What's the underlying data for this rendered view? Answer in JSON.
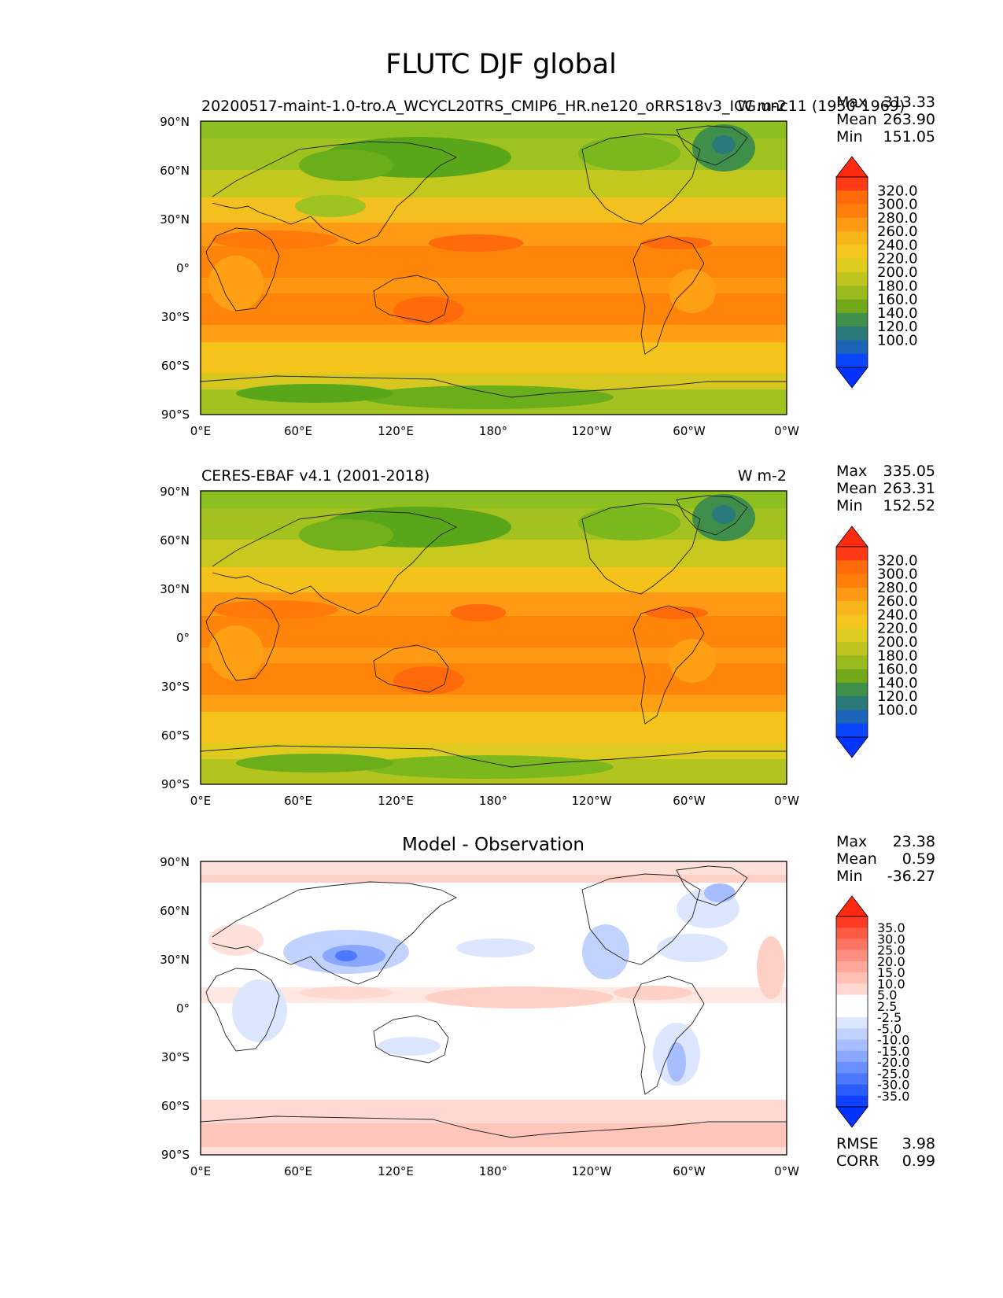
{
  "figure": {
    "title": "FLUTC DJF global"
  },
  "panels": [
    {
      "id": "test",
      "title_left": "20200517-maint-1.0-tro.A_WCYCL20TRS_CMIP6_HR.ne120_oRRS18v3_ICG.unc11 (1950-1969)",
      "title_center": "",
      "title_right": "W m-2",
      "stats": [
        {
          "label": "Max",
          "value": "313.33"
        },
        {
          "label": "Mean",
          "value": "263.90"
        },
        {
          "label": "Min",
          "value": "151.05"
        }
      ],
      "colorbar_key": "absolute"
    },
    {
      "id": "reference",
      "title_left": "CERES-EBAF v4.1 (2001-2018)",
      "title_center": "",
      "title_right": "W m-2",
      "stats": [
        {
          "label": "Max",
          "value": "335.05"
        },
        {
          "label": "Mean",
          "value": "263.31"
        },
        {
          "label": "Min",
          "value": "152.52"
        }
      ],
      "colorbar_key": "absolute"
    },
    {
      "id": "diff",
      "title_left": "",
      "title_center": "Model - Observation",
      "title_right": "",
      "stats": [
        {
          "label": "Max",
          "value": "23.38"
        },
        {
          "label": "Mean",
          "value": "0.59"
        },
        {
          "label": "Min",
          "value": "-36.27"
        }
      ],
      "extra_stats": [
        {
          "label": "RMSE",
          "value": "3.98"
        },
        {
          "label": "CORR",
          "value": "0.99"
        }
      ],
      "colorbar_key": "difference"
    }
  ],
  "axes": {
    "lat_ticks": [
      "90°N",
      "60°N",
      "30°N",
      "0°",
      "30°S",
      "60°S",
      "90°S"
    ],
    "lon_ticks": [
      "0°E",
      "60°E",
      "120°E",
      "180°",
      "120°W",
      "60°W",
      "0°W"
    ]
  },
  "colorbars": {
    "absolute": {
      "labels": [
        "320.0",
        "300.0",
        "280.0",
        "260.0",
        "240.0",
        "220.0",
        "200.0",
        "180.0",
        "160.0",
        "140.0",
        "120.0",
        "100.0"
      ],
      "colors_top_to_bottom": [
        "#ff3a14",
        "#ff6a0a",
        "#ff7f0a",
        "#ff9a14",
        "#f7b519",
        "#f5c51f",
        "#dfcc20",
        "#bfc41e",
        "#99bb1d",
        "#72a81a",
        "#3f8f4a",
        "#2a7a7a",
        "#1c64b8",
        "#0a45ff"
      ],
      "top_arrow": "#ff2a10",
      "bottom_arrow": "#0033ff"
    },
    "difference": {
      "labels": [
        "35.0",
        "30.0",
        "25.0",
        "20.0",
        "15.0",
        "10.0",
        "5.0",
        "2.5",
        "-2.5",
        "-5.0",
        "-10.0",
        "-15.0",
        "-20.0",
        "-25.0",
        "-30.0",
        "-35.0"
      ],
      "colors_top_to_bottom": [
        "#ff3a22",
        "#ff5a45",
        "#ff7563",
        "#ff8f80",
        "#ffa89b",
        "#ffc1b6",
        "#ffd9d1",
        "#ffffff",
        "#ffffff",
        "#dde6ff",
        "#c2d2ff",
        "#a6bdff",
        "#8aa8ff",
        "#6a90ff",
        "#4c78ff",
        "#2a5cff",
        "#1040ff"
      ],
      "top_arrow": "#ff2a10",
      "bottom_arrow": "#0033ff"
    }
  },
  "chart_data": [
    {
      "type": "heatmap",
      "title": "20200517-maint-1.0-tro.A_WCYCL20TRS_CMIP6_HR.ne120_oRRS18v3_ICG.unc11 (1950-1969)",
      "units": "W m-2",
      "x": [
        "0°E",
        "60°E",
        "120°E",
        "180°",
        "120°W",
        "60°W",
        "0°W"
      ],
      "y": [
        "90°N",
        "60°N",
        "30°N",
        "0°",
        "30°S",
        "60°S",
        "90°S"
      ],
      "zonal_band_values_N_to_S": [
        195,
        200,
        230,
        265,
        285,
        290,
        280,
        270,
        255,
        235,
        220,
        205
      ],
      "stats": {
        "max": 313.33,
        "mean": 263.9,
        "min": 151.05
      },
      "colorbar_levels": [
        100,
        120,
        140,
        160,
        180,
        200,
        220,
        240,
        260,
        280,
        300,
        320
      ]
    },
    {
      "type": "heatmap",
      "title": "CERES-EBAF v4.1 (2001-2018)",
      "units": "W m-2",
      "x": [
        "0°E",
        "60°E",
        "120°E",
        "180°",
        "120°W",
        "60°W",
        "0°W"
      ],
      "y": [
        "90°N",
        "60°N",
        "30°N",
        "0°",
        "30°S",
        "60°S",
        "90°S"
      ],
      "zonal_band_values_N_to_S": [
        195,
        200,
        230,
        265,
        285,
        290,
        280,
        270,
        255,
        235,
        220,
        205
      ],
      "stats": {
        "max": 335.05,
        "mean": 263.31,
        "min": 152.52
      },
      "colorbar_levels": [
        100,
        120,
        140,
        160,
        180,
        200,
        220,
        240,
        260,
        280,
        300,
        320
      ]
    },
    {
      "type": "heatmap",
      "title": "Model - Observation",
      "x": [
        "0°E",
        "60°E",
        "120°E",
        "180°",
        "120°W",
        "60°W",
        "0°W"
      ],
      "y": [
        "90°N",
        "60°N",
        "30°N",
        "0°",
        "30°S",
        "60°S",
        "90°S"
      ],
      "zonal_band_values_N_to_S": [
        5,
        0,
        -3,
        0,
        5,
        0,
        0,
        0,
        0,
        5,
        5,
        0
      ],
      "stats": {
        "max": 23.38,
        "mean": 0.59,
        "min": -36.27,
        "rmse": 3.98,
        "corr": 0.99
      },
      "colorbar_levels": [
        -35,
        -30,
        -25,
        -20,
        -15,
        -10,
        -5,
        -2.5,
        2.5,
        5,
        10,
        15,
        20,
        25,
        30,
        35
      ]
    }
  ]
}
